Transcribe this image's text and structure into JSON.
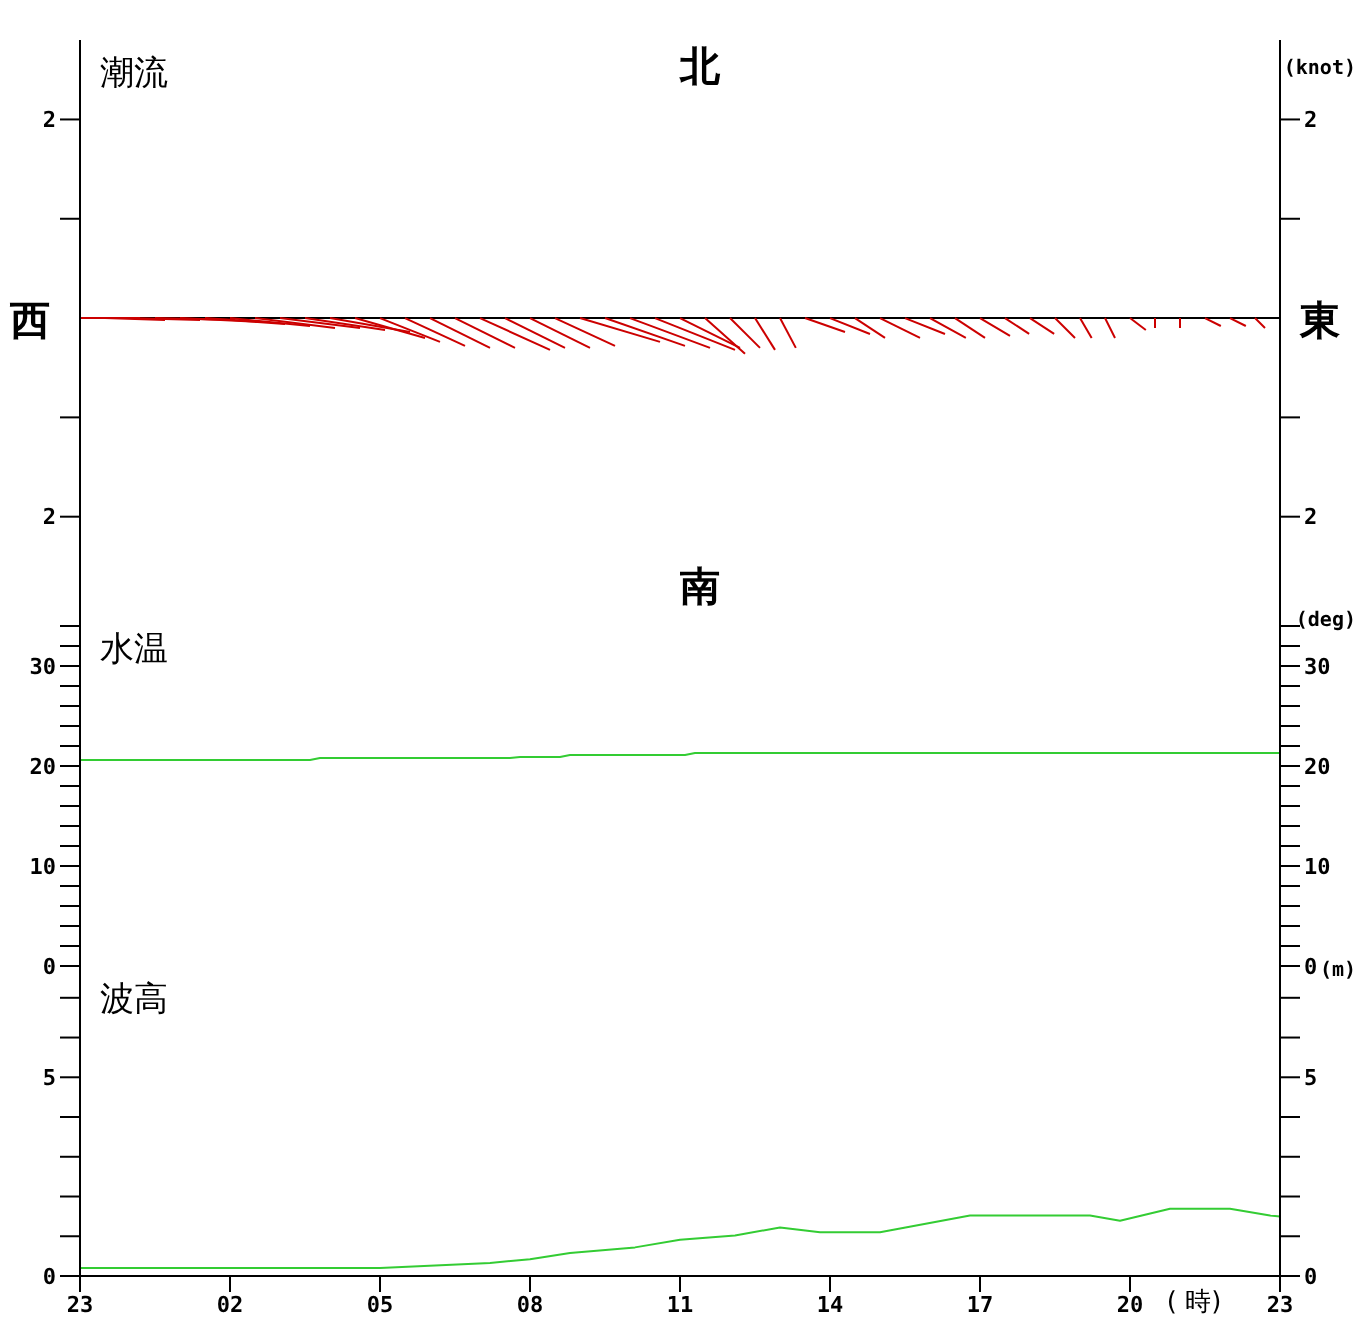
{
  "chart_data": [
    {
      "type": "line",
      "title": "潮流",
      "y2label": "(knot)",
      "annotations": [
        "北",
        "南",
        "西",
        "東"
      ],
      "xlim": [
        "--01-01T23:00",
        "--01-02T23:00"
      ],
      "ylim": [
        -3,
        2.8
      ],
      "yticks": [
        {
          "value": -2,
          "label": "2"
        },
        {
          "value": -1,
          "label": null
        },
        {
          "value": 1,
          "label": null
        },
        2
      ],
      "y2lim": [
        -3,
        2.8
      ],
      "y2ticks": [
        {
          "value": -2,
          "label": "2"
        },
        {
          "value": -1,
          "label": null
        },
        {
          "value": 1,
          "label": null
        },
        2
      ],
      "tick_labels": "y",
      "marker": "none",
      "ref_lines": [
        {
          "axis": "y",
          "value": 0,
          "color": "#000000"
        }
      ],
      "series": [
        {
          "color": "#cc0000",
          "x": [
            "--01-01T23:00",
            "--01-02T00:12"
          ],
          "values": [
            0,
            0
          ]
        },
        {
          "color": "#cc0000",
          "x": [
            "--01-01T23:30",
            "--01-02T00:42"
          ],
          "values": [
            0,
            -0.02
          ]
        },
        {
          "color": "#cc0000",
          "x": [
            "--01-02T00:00",
            "--01-02T01:24"
          ],
          "values": [
            0,
            -0.02
          ]
        },
        {
          "color": "#cc0000",
          "x": [
            "--01-02T00:30",
            "--01-02T02:06"
          ],
          "values": [
            0,
            -0.02
          ]
        },
        {
          "color": "#cc0000",
          "x": [
            "--01-02T01:00",
            "--01-02T02:36"
          ],
          "values": [
            0,
            -0.04
          ]
        },
        {
          "color": "#cc0000",
          "x": [
            "--01-02T01:30",
            "--01-02T03:06"
          ],
          "values": [
            0,
            -0.06
          ]
        },
        {
          "color": "#cc0000",
          "x": [
            "--01-02T02:00",
            "--01-02T03:36"
          ],
          "values": [
            0,
            -0.08
          ]
        },
        {
          "color": "#cc0000",
          "x": [
            "--01-02T02:30",
            "--01-02T04:06"
          ],
          "values": [
            0,
            -0.1
          ]
        },
        {
          "color": "#cc0000",
          "x": [
            "--01-02T03:00",
            "--01-02T04:36"
          ],
          "values": [
            0,
            -0.1
          ]
        },
        {
          "color": "#cc0000",
          "x": [
            "--01-02T03:30",
            "--01-02T05:06"
          ],
          "values": [
            0,
            -0.12
          ]
        },
        {
          "color": "#cc0000",
          "x": [
            "--01-02T04:00",
            "--01-02T05:36"
          ],
          "values": [
            0,
            -0.14
          ]
        },
        {
          "color": "#cc0000",
          "x": [
            "--01-02T04:30",
            "--01-02T05:54"
          ],
          "values": [
            0,
            -0.2
          ]
        },
        {
          "color": "#cc0000",
          "x": [
            "--01-02T05:00",
            "--01-02T06:12"
          ],
          "values": [
            0,
            -0.24
          ]
        },
        {
          "color": "#cc0000",
          "x": [
            "--01-02T05:30",
            "--01-02T06:42"
          ],
          "values": [
            0,
            -0.28
          ]
        },
        {
          "color": "#cc0000",
          "x": [
            "--01-02T06:00",
            "--01-02T07:12"
          ],
          "values": [
            0,
            -0.3
          ]
        },
        {
          "color": "#cc0000",
          "x": [
            "--01-02T06:30",
            "--01-02T07:42"
          ],
          "values": [
            0,
            -0.3
          ]
        },
        {
          "color": "#cc0000",
          "x": [
            "--01-02T07:00",
            "--01-02T08:24"
          ],
          "values": [
            0,
            -0.32
          ]
        },
        {
          "color": "#cc0000",
          "x": [
            "--01-02T07:30",
            "--01-02T08:42"
          ],
          "values": [
            0,
            -0.3
          ]
        },
        {
          "color": "#cc0000",
          "x": [
            "--01-02T08:00",
            "--01-02T09:12"
          ],
          "values": [
            0,
            -0.3
          ]
        },
        {
          "color": "#cc0000",
          "x": [
            "--01-02T08:30",
            "--01-02T09:42"
          ],
          "values": [
            0,
            -0.28
          ]
        },
        {
          "color": "#cc0000",
          "x": [
            "--01-02T09:00",
            "--01-02T10:36"
          ],
          "values": [
            0,
            -0.24
          ]
        },
        {
          "color": "#cc0000",
          "x": [
            "--01-02T09:30",
            "--01-02T11:06"
          ],
          "values": [
            0,
            -0.28
          ]
        },
        {
          "color": "#cc0000",
          "x": [
            "--01-02T10:00",
            "--01-02T11:36"
          ],
          "values": [
            0,
            -0.3
          ]
        },
        {
          "color": "#cc0000",
          "x": [
            "--01-02T10:30",
            "--01-02T12:06"
          ],
          "values": [
            0,
            -0.32
          ]
        },
        {
          "color": "#cc0000",
          "x": [
            "--01-02T11:00",
            "--01-02T12:12"
          ],
          "values": [
            0,
            -0.3
          ]
        },
        {
          "color": "#cc0000",
          "x": [
            "--01-02T11:30",
            "--01-02T12:18"
          ],
          "values": [
            0,
            -0.36
          ]
        },
        {
          "color": "#cc0000",
          "x": [
            "--01-02T12:00",
            "--01-02T12:36"
          ],
          "values": [
            0,
            -0.3
          ]
        },
        {
          "color": "#cc0000",
          "x": [
            "--01-02T12:30",
            "--01-02T12:54"
          ],
          "values": [
            0,
            -0.32
          ]
        },
        {
          "color": "#cc0000",
          "x": [
            "--01-02T13:00",
            "--01-02T13:19"
          ],
          "values": [
            0,
            -0.3
          ]
        },
        {
          "color": "#cc0000",
          "x": [
            "--01-02T13:30",
            "--01-02T14:18"
          ],
          "values": [
            0,
            -0.14
          ]
        },
        {
          "color": "#cc0000",
          "x": [
            "--01-02T14:00",
            "--01-02T14:48"
          ],
          "values": [
            0,
            -0.16
          ]
        },
        {
          "color": "#cc0000",
          "x": [
            "--01-02T14:30",
            "--01-02T15:06"
          ],
          "values": [
            0,
            -0.2
          ]
        },
        {
          "color": "#cc0000",
          "x": [
            "--01-02T15:00",
            "--01-02T15:48"
          ],
          "values": [
            0,
            -0.2
          ]
        },
        {
          "color": "#cc0000",
          "x": [
            "--01-02T15:30",
            "--01-02T16:18"
          ],
          "values": [
            0,
            -0.16
          ]
        },
        {
          "color": "#cc0000",
          "x": [
            "--01-02T16:00",
            "--01-02T16:43"
          ],
          "values": [
            0,
            -0.2
          ]
        },
        {
          "color": "#cc0000",
          "x": [
            "--01-02T16:30",
            "--01-02T17:06"
          ],
          "values": [
            0,
            -0.2
          ]
        },
        {
          "color": "#cc0000",
          "x": [
            "--01-02T17:00",
            "--01-02T17:36"
          ],
          "values": [
            0,
            -0.18
          ]
        },
        {
          "color": "#cc0000",
          "x": [
            "--01-02T17:30",
            "--01-02T17:59"
          ],
          "values": [
            0,
            -0.16
          ]
        },
        {
          "color": "#cc0000",
          "x": [
            "--01-02T18:00",
            "--01-02T18:29"
          ],
          "values": [
            0,
            -0.16
          ]
        },
        {
          "color": "#cc0000",
          "x": [
            "--01-02T18:30",
            "--01-02T18:54"
          ],
          "values": [
            0,
            -0.2
          ]
        },
        {
          "color": "#cc0000",
          "x": [
            "--01-02T19:00",
            "--01-02T19:14"
          ],
          "values": [
            0,
            -0.2
          ]
        },
        {
          "color": "#cc0000",
          "x": [
            "--01-02T19:30",
            "--01-02T19:42"
          ],
          "values": [
            0,
            -0.2
          ]
        },
        {
          "color": "#cc0000",
          "x": [
            "--01-02T20:00",
            "--01-02T20:19"
          ],
          "values": [
            0,
            -0.12
          ]
        },
        {
          "color": "#cc0000",
          "x": [
            "--01-02T20:30",
            "--01-02T20:30"
          ],
          "values": [
            0,
            -0.1
          ]
        },
        {
          "color": "#cc0000",
          "x": [
            "--01-02T21:00",
            "--01-02T21:00"
          ],
          "values": [
            0,
            -0.1
          ]
        },
        {
          "color": "#cc0000",
          "x": [
            "--01-02T21:30",
            "--01-02T21:49"
          ],
          "values": [
            0,
            -0.08
          ]
        },
        {
          "color": "#cc0000",
          "x": [
            "--01-02T22:00",
            "--01-02T22:19"
          ],
          "values": [
            0,
            -0.08
          ]
        },
        {
          "color": "#cc0000",
          "x": [
            "--01-02T22:30",
            "--01-02T22:42"
          ],
          "values": [
            0,
            -0.1
          ]
        }
      ]
    },
    {
      "type": "line",
      "title": "水温",
      "y2label": "(deg)",
      "xlim": [
        "--01-01T23:00",
        "--01-02T23:00"
      ],
      "ylim": [
        0,
        35
      ],
      "yticks": [
        0,
        {
          "value": 2,
          "label": null
        },
        {
          "value": 4,
          "label": null
        },
        {
          "value": 6,
          "label": null
        },
        {
          "value": 8,
          "label": null
        },
        10,
        {
          "value": 12,
          "label": null
        },
        {
          "value": 14,
          "label": null
        },
        {
          "value": 16,
          "label": null
        },
        {
          "value": 18,
          "label": null
        },
        20,
        {
          "value": 22,
          "label": null
        },
        {
          "value": 24,
          "label": null
        },
        {
          "value": 26,
          "label": null
        },
        {
          "value": 28,
          "label": null
        },
        30,
        {
          "value": 32,
          "label": null
        },
        {
          "value": 34,
          "label": null
        }
      ],
      "y2lim": [
        0,
        35
      ],
      "y2ticks": [
        0,
        {
          "value": 2,
          "label": null
        },
        {
          "value": 4,
          "label": null
        },
        {
          "value": 6,
          "label": null
        },
        {
          "value": 8,
          "label": null
        },
        10,
        {
          "value": 12,
          "label": null
        },
        {
          "value": 14,
          "label": null
        },
        {
          "value": 16,
          "label": null
        },
        {
          "value": 18,
          "label": null
        },
        20,
        {
          "value": 22,
          "label": null
        },
        {
          "value": 24,
          "label": null
        },
        {
          "value": 26,
          "label": null
        },
        {
          "value": 28,
          "label": null
        },
        30,
        {
          "value": 32,
          "label": null
        },
        {
          "value": 34,
          "label": null
        }
      ],
      "tick_labels": "y",
      "marker": "none",
      "series": [
        {
          "color": "#33cc33",
          "x": [
            "--01-01T23:00",
            "--01-02T03:36",
            "--01-02T03:48",
            "--01-02T07:36",
            "--01-02T07:48",
            "--01-02T08:36",
            "--01-02T08:48",
            "--01-02T11:06",
            "--01-02T11:18",
            "--01-02T23:00"
          ],
          "values": [
            20.6,
            20.6,
            20.8,
            20.8,
            20.9,
            20.9,
            21.1,
            21.1,
            21.3,
            21.3
          ]
        }
      ]
    },
    {
      "type": "line",
      "title": "波高",
      "y2label": "(m)",
      "xlabel": "( 時)",
      "xlim": [
        "--01-01T23:00",
        "--01-02T23:00"
      ],
      "xticks": [
        {
          "value": "--01-01T23:00",
          "label": "23"
        },
        {
          "value": "--01-02T02:00",
          "label": "02"
        },
        {
          "value": "--01-02T05:00",
          "label": "05"
        },
        {
          "value": "--01-02T08:00",
          "label": "08"
        },
        {
          "value": "--01-02T11:00",
          "label": "11"
        },
        {
          "value": "--01-02T14:00",
          "label": "14"
        },
        {
          "value": "--01-02T17:00",
          "label": "17"
        },
        {
          "value": "--01-02T20:00",
          "label": "20"
        },
        {
          "value": "--01-02T23:00",
          "label": "23"
        }
      ],
      "ylim": [
        0,
        7.8
      ],
      "yticks": [
        0,
        {
          "value": 1,
          "label": null
        },
        {
          "value": 2,
          "label": null
        },
        {
          "value": 3,
          "label": null
        },
        {
          "value": 4,
          "label": null
        },
        5,
        {
          "value": 6,
          "label": null
        },
        {
          "value": 7,
          "label": null
        }
      ],
      "y2lim": [
        0,
        7.8
      ],
      "y2ticks": [
        0,
        {
          "value": 1,
          "label": null
        },
        {
          "value": 2,
          "label": null
        },
        {
          "value": 3,
          "label": null
        },
        {
          "value": 4,
          "label": null
        },
        5,
        {
          "value": 6,
          "label": null
        },
        {
          "value": 7,
          "label": null
        }
      ],
      "marker": "none",
      "series": [
        {
          "color": "#33cc33",
          "x": [
            "--01-01T23:00",
            "--01-02T05:00",
            "--01-02T07:12",
            "--01-02T08:00",
            "--01-02T08:48",
            "--01-02T10:06",
            "--01-02T11:00",
            "--01-02T12:06",
            "--01-02T13:00",
            "--01-02T13:48",
            "--01-02T15:00",
            "--01-02T16:48",
            "--01-02T19:12",
            "--01-02T19:48",
            "--01-02T20:48",
            "--01-02T22:00",
            "--01-02T22:48",
            "--01-02T23:00"
          ],
          "values": [
            0.2,
            0.2,
            0.33,
            0.42,
            0.58,
            0.72,
            0.91,
            1.02,
            1.22,
            1.1,
            1.1,
            1.52,
            1.52,
            1.39,
            1.69,
            1.69,
            1.52,
            1.5
          ]
        }
      ]
    }
  ]
}
